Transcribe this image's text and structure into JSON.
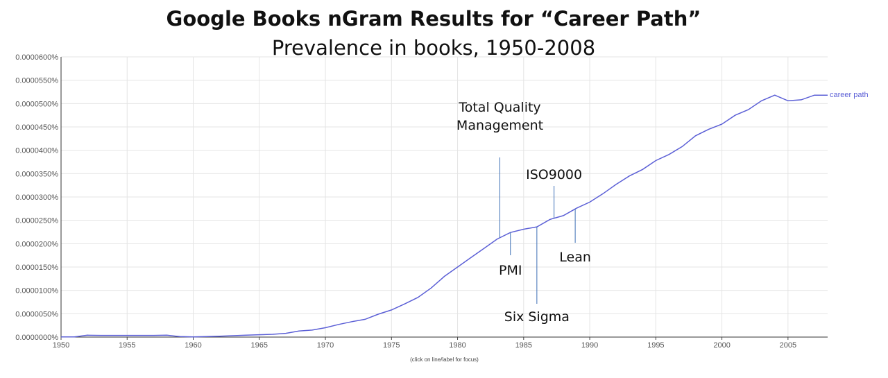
{
  "chart_data": {
    "type": "line",
    "title": "Google Books nGram Results for “Career Path”",
    "subtitle": "Prevalence in books, 1950-2008",
    "xlabel": "",
    "ylabel": "",
    "xlim": [
      1950,
      2008
    ],
    "ylim": [
      0,
      6e-07
    ],
    "grid": true,
    "legend_position": "right-end-of-line",
    "x_ticks": [
      1950,
      1955,
      1960,
      1965,
      1970,
      1975,
      1980,
      1985,
      1990,
      1995,
      2000,
      2005
    ],
    "x_tick_labels": [
      "1950",
      "1955",
      "1960",
      "1965",
      "1970",
      "1975",
      "1980",
      "1985",
      "1990",
      "1995",
      "2000",
      "2005"
    ],
    "y_ticks": [
      0,
      5e-08,
      1e-07,
      1.5e-07,
      2e-07,
      2.5e-07,
      3e-07,
      3.5e-07,
      4e-07,
      4.5e-07,
      5e-07,
      5.5e-07,
      6e-07
    ],
    "y_tick_labels": [
      "0.0000000%",
      "0.0000050%",
      "0.0000100%",
      "0.0000150%",
      "0.0000200%",
      "0.0000250%",
      "0.0000300%",
      "0.0000350%",
      "0.0000400%",
      "0.0000450%",
      "0.0000500%",
      "0.0000550%",
      "0.0000600%"
    ],
    "series": [
      {
        "name": "career path",
        "color": "#5b5fd6",
        "x": [
          1950,
          1951,
          1952,
          1953,
          1954,
          1955,
          1956,
          1957,
          1958,
          1959,
          1960,
          1961,
          1962,
          1963,
          1964,
          1965,
          1966,
          1967,
          1968,
          1969,
          1970,
          1971,
          1972,
          1973,
          1974,
          1975,
          1976,
          1977,
          1978,
          1979,
          1980,
          1981,
          1982,
          1983,
          1984,
          1985,
          1986,
          1987,
          1988,
          1989,
          1990,
          1991,
          1992,
          1993,
          1994,
          1995,
          1996,
          1997,
          1998,
          1999,
          2000,
          2001,
          2002,
          2003,
          2004,
          2005,
          2006,
          2007,
          2008
        ],
        "values": [
          5e-10,
          5e-10,
          4e-09,
          3.5e-09,
          3.5e-09,
          3.5e-09,
          3.5e-09,
          3.5e-09,
          4e-09,
          1e-09,
          5e-10,
          1e-09,
          2e-09,
          3e-09,
          4e-09,
          5e-09,
          6e-09,
          8e-09,
          1.3e-08,
          1.5e-08,
          2e-08,
          2.7e-08,
          3.3e-08,
          3.8e-08,
          4.9e-08,
          5.8e-08,
          7.1e-08,
          8.5e-08,
          1.05e-07,
          1.3e-07,
          1.5e-07,
          1.7e-07,
          1.9e-07,
          2.1e-07,
          2.24e-07,
          2.31e-07,
          2.36e-07,
          2.52e-07,
          2.6e-07,
          2.76e-07,
          2.89e-07,
          3.07e-07,
          3.27e-07,
          3.45e-07,
          3.59e-07,
          3.78e-07,
          3.91e-07,
          4.08e-07,
          4.31e-07,
          4.45e-07,
          4.56e-07,
          4.75e-07,
          4.87e-07,
          5.06e-07,
          5.18e-07,
          5.06e-07,
          5.08e-07,
          5.18e-07,
          5.18e-07
        ]
      }
    ],
    "annotations": [
      {
        "lines": [
          "Total Quality",
          "Management"
        ],
        "year": 1983.2,
        "side": "above"
      },
      {
        "lines": [
          "ISO9000"
        ],
        "year": 1987.3,
        "side": "above"
      },
      {
        "lines": [
          "PMI"
        ],
        "year": 1984,
        "side": "below"
      },
      {
        "lines": [
          "Six Sigma"
        ],
        "year": 1986,
        "side": "below"
      },
      {
        "lines": [
          "Lean"
        ],
        "year": 1988.9,
        "side": "below"
      }
    ],
    "footnote": "(click on line/label for focus)"
  }
}
